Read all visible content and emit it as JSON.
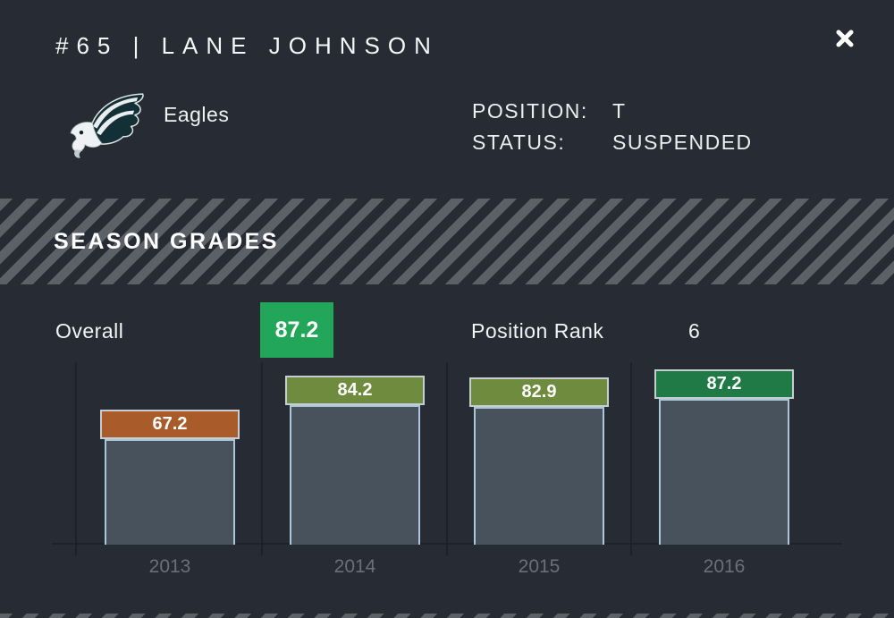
{
  "header": {
    "title": "#65 | LANE JOHNSON",
    "team": "Eagles",
    "position_label": "POSITION:",
    "position_value": "T",
    "status_label": "STATUS:",
    "status_value": "SUSPENDED"
  },
  "icons": {
    "close-icon": "✕",
    "team-logo-icon": "eagle-head"
  },
  "section": {
    "title": "SEASON GRADES"
  },
  "summary": {
    "overall_label": "Overall",
    "overall_value": "87.2",
    "overall_badge_color": "#22a659",
    "rank_label": "Position Rank",
    "rank_value": "6"
  },
  "chart_data": {
    "type": "bar",
    "categories": [
      "2013",
      "2014",
      "2015",
      "2016"
    ],
    "values": [
      67.2,
      84.2,
      82.9,
      87.2
    ],
    "value_labels": [
      "67.2",
      "84.2",
      "82.9",
      "87.2"
    ],
    "cap_colors": [
      "#a95b29",
      "#6f8b3e",
      "#6f8b3e",
      "#1f7a46"
    ],
    "bar_body_color": "#47525c",
    "bar_border_color": "#a9c7d9",
    "cap_border_color": "#c6cdd3",
    "ylim": [
      0,
      100
    ],
    "grid": true,
    "legend": false
  },
  "colors": {
    "background": "#272c34",
    "stripe": "#5c6067",
    "text": "#f2f4f5",
    "muted_year": "#6a7077",
    "axis": "#1d222a"
  }
}
